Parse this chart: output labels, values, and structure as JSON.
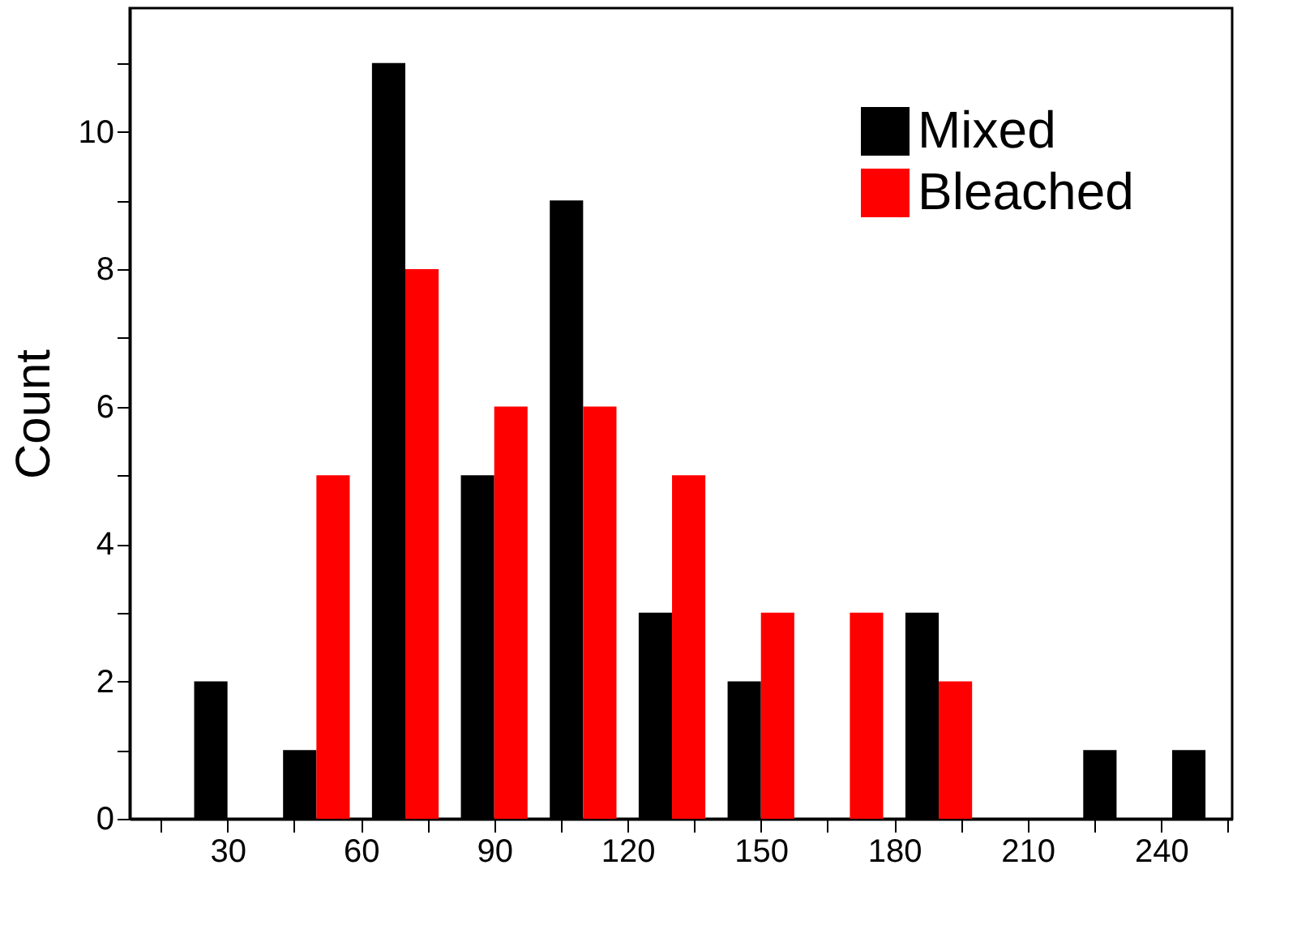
{
  "chart_data": {
    "type": "bar",
    "ylabel": "Count",
    "x": [
      30,
      50,
      70,
      90,
      110,
      130,
      150,
      170,
      190,
      210,
      230,
      250
    ],
    "series": [
      {
        "name": "Mixed",
        "color": "#000000",
        "values": [
          2,
          1,
          11,
          5,
          9,
          3,
          2,
          0,
          3,
          0,
          1,
          1
        ]
      },
      {
        "name": "Bleached",
        "color": "#ff0000",
        "values": [
          0,
          5,
          8,
          6,
          6,
          5,
          3,
          3,
          2,
          0,
          0,
          0
        ]
      }
    ],
    "xlim": [
      8,
      256
    ],
    "ylim": [
      0,
      11.8
    ],
    "xticks": [
      {
        "value": 15,
        "label": null
      },
      30,
      {
        "value": 45,
        "label": null
      },
      60,
      {
        "value": 75,
        "label": null
      },
      90,
      {
        "value": 105,
        "label": null
      },
      120,
      {
        "value": 135,
        "label": null
      },
      150,
      {
        "value": 165,
        "label": null
      },
      180,
      {
        "value": 195,
        "label": null
      },
      210,
      {
        "value": 225,
        "label": null
      },
      240,
      {
        "value": 255,
        "label": null
      }
    ],
    "yticks": [
      0,
      {
        "value": 1,
        "label": null
      },
      2,
      {
        "value": 3,
        "label": null
      },
      4,
      {
        "value": 5,
        "label": null
      },
      6,
      {
        "value": 7,
        "label": null
      },
      8,
      {
        "value": 9,
        "label": null
      },
      10,
      {
        "value": 11,
        "label": null
      }
    ],
    "legend": "top right",
    "grid": false
  }
}
